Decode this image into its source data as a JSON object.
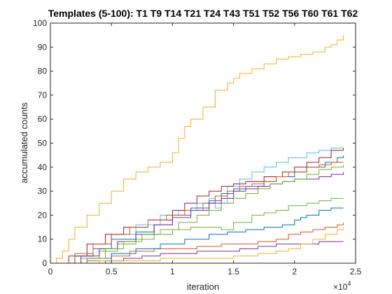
{
  "chart_data": {
    "type": "line",
    "title": "Templates (5-100): T1  T9 T14 T21 T24 T43 T51 T52 T56 T60 T61 T62",
    "xlabel": "iteration",
    "ylabel": "accumulated counts",
    "x_exponent_label": "×10",
    "x_exponent_power": "4",
    "xlim": [
      0,
      2.5
    ],
    "ylim": [
      0,
      100
    ],
    "x_scale_factor": 10000,
    "xticks": [
      0,
      0.5,
      1,
      1.5,
      2,
      2.5
    ],
    "xtick_labels": [
      "0",
      "0.5",
      "1",
      "1.5",
      "2",
      "2.5"
    ],
    "yticks": [
      0,
      10,
      20,
      30,
      40,
      50,
      60,
      70,
      80,
      90,
      100
    ],
    "ytick_labels": [
      "0",
      "10",
      "20",
      "30",
      "40",
      "50",
      "60",
      "70",
      "80",
      "90",
      "100"
    ],
    "grid": false,
    "series": [
      {
        "color": "#EDB120",
        "points": [
          [
            0,
            0
          ],
          [
            0.05,
            2
          ],
          [
            0.1,
            5
          ],
          [
            0.15,
            10
          ],
          [
            0.2,
            15
          ],
          [
            0.3,
            20
          ],
          [
            0.4,
            25
          ],
          [
            0.5,
            30
          ],
          [
            0.6,
            35
          ],
          [
            0.7,
            38
          ],
          [
            0.8,
            40
          ],
          [
            0.9,
            42
          ],
          [
            1.0,
            46
          ],
          [
            1.05,
            52
          ],
          [
            1.1,
            57
          ],
          [
            1.15,
            60
          ],
          [
            1.25,
            65
          ],
          [
            1.35,
            72
          ],
          [
            1.45,
            75
          ],
          [
            1.5,
            77
          ],
          [
            1.55,
            79
          ],
          [
            1.65,
            81
          ],
          [
            1.75,
            83
          ],
          [
            1.85,
            85
          ],
          [
            1.95,
            86
          ],
          [
            2.05,
            87
          ],
          [
            2.15,
            88
          ],
          [
            2.25,
            90
          ],
          [
            2.3,
            91
          ],
          [
            2.35,
            93
          ],
          [
            2.4,
            95
          ]
        ]
      },
      {
        "color": "#4DBEEE",
        "points": [
          [
            0,
            0
          ],
          [
            0.2,
            3
          ],
          [
            0.35,
            8
          ],
          [
            0.5,
            12
          ],
          [
            0.7,
            16
          ],
          [
            0.9,
            20
          ],
          [
            1.05,
            22
          ],
          [
            1.2,
            25
          ],
          [
            1.3,
            27
          ],
          [
            1.35,
            23
          ],
          [
            1.4,
            25
          ],
          [
            1.45,
            32
          ],
          [
            1.55,
            35
          ],
          [
            1.65,
            38
          ],
          [
            1.75,
            40
          ],
          [
            1.85,
            42
          ],
          [
            1.95,
            44
          ],
          [
            2.1,
            46
          ],
          [
            2.2,
            47
          ],
          [
            2.3,
            48
          ],
          [
            2.4,
            48
          ]
        ]
      },
      {
        "color": "#A2142F",
        "points": [
          [
            0,
            0
          ],
          [
            0.15,
            3
          ],
          [
            0.3,
            8
          ],
          [
            0.45,
            12
          ],
          [
            0.6,
            15
          ],
          [
            0.8,
            18
          ],
          [
            1.0,
            22
          ],
          [
            1.1,
            25
          ],
          [
            1.2,
            28
          ],
          [
            1.3,
            30
          ],
          [
            1.4,
            32
          ],
          [
            1.5,
            33
          ],
          [
            1.6,
            34
          ],
          [
            1.75,
            36
          ],
          [
            1.9,
            38
          ],
          [
            2.0,
            40
          ],
          [
            2.1,
            42
          ],
          [
            2.2,
            44
          ],
          [
            2.3,
            47
          ],
          [
            2.4,
            48
          ]
        ]
      },
      {
        "color": "#0072BD",
        "points": [
          [
            0,
            0
          ],
          [
            0.2,
            3
          ],
          [
            0.35,
            6
          ],
          [
            0.5,
            10
          ],
          [
            0.7,
            13
          ],
          [
            0.85,
            16
          ],
          [
            1.0,
            20
          ],
          [
            1.15,
            23
          ],
          [
            1.3,
            26
          ],
          [
            1.4,
            29
          ],
          [
            1.5,
            31
          ],
          [
            1.6,
            32
          ],
          [
            1.75,
            34
          ],
          [
            1.85,
            36
          ],
          [
            2.0,
            38
          ],
          [
            2.1,
            40
          ],
          [
            2.25,
            42
          ],
          [
            2.35,
            44
          ],
          [
            2.4,
            45
          ]
        ]
      },
      {
        "color": "#77AC30",
        "points": [
          [
            0,
            0
          ],
          [
            0.25,
            2
          ],
          [
            0.4,
            5
          ],
          [
            0.55,
            8
          ],
          [
            0.7,
            10
          ],
          [
            0.85,
            12
          ],
          [
            1.0,
            14
          ],
          [
            1.15,
            15
          ],
          [
            1.3,
            15
          ],
          [
            1.4,
            14
          ],
          [
            1.5,
            17
          ],
          [
            1.65,
            20
          ],
          [
            1.75,
            21
          ],
          [
            1.85,
            22
          ],
          [
            1.95,
            24
          ],
          [
            2.1,
            25
          ],
          [
            2.2,
            26
          ],
          [
            2.3,
            27
          ],
          [
            2.4,
            27
          ]
        ]
      },
      {
        "color": "#D95319",
        "points": [
          [
            0,
            0
          ],
          [
            0.3,
            1
          ],
          [
            0.5,
            3
          ],
          [
            0.65,
            5
          ],
          [
            0.85,
            6
          ],
          [
            1.0,
            6
          ],
          [
            1.2,
            7
          ],
          [
            1.4,
            8
          ],
          [
            1.55,
            8
          ],
          [
            1.7,
            9
          ],
          [
            1.85,
            10
          ],
          [
            1.95,
            12
          ],
          [
            2.05,
            13
          ],
          [
            2.15,
            14
          ],
          [
            2.25,
            15
          ],
          [
            2.35,
            16
          ],
          [
            2.4,
            17
          ]
        ]
      },
      {
        "color": "#7E2F8E",
        "points": [
          [
            0,
            0
          ],
          [
            0.45,
            1
          ],
          [
            0.6,
            2
          ],
          [
            0.75,
            3
          ],
          [
            0.9,
            4
          ],
          [
            1.05,
            4
          ],
          [
            1.2,
            5
          ],
          [
            1.3,
            5
          ],
          [
            1.4,
            5
          ],
          [
            1.55,
            6
          ],
          [
            1.7,
            7
          ],
          [
            1.85,
            8
          ],
          [
            2.0,
            8
          ],
          [
            2.2,
            9
          ],
          [
            2.4,
            9
          ]
        ]
      },
      {
        "color": "#0072BD",
        "points": [
          [
            0,
            0
          ],
          [
            0.3,
            2
          ],
          [
            0.5,
            4
          ],
          [
            0.7,
            6
          ],
          [
            0.9,
            8
          ],
          [
            1.1,
            10
          ],
          [
            1.3,
            12
          ],
          [
            1.45,
            13
          ],
          [
            1.6,
            14
          ],
          [
            1.75,
            15
          ],
          [
            1.9,
            16
          ],
          [
            2.0,
            18
          ],
          [
            2.05,
            19
          ],
          [
            2.1,
            20
          ],
          [
            2.2,
            22
          ],
          [
            2.3,
            23
          ],
          [
            2.4,
            23
          ]
        ]
      },
      {
        "color": "#EDB120",
        "points": [
          [
            0,
            0
          ],
          [
            0.4,
            1
          ],
          [
            0.7,
            1
          ],
          [
            0.9,
            2
          ],
          [
            1.1,
            2
          ],
          [
            1.3,
            2
          ],
          [
            1.5,
            3
          ],
          [
            1.7,
            4
          ],
          [
            1.85,
            5
          ],
          [
            1.95,
            6
          ],
          [
            2.05,
            8
          ],
          [
            2.15,
            10
          ],
          [
            2.25,
            12
          ],
          [
            2.35,
            14
          ],
          [
            2.4,
            15
          ]
        ]
      },
      {
        "color": "#D95319",
        "points": [
          [
            0,
            0
          ],
          [
            0.2,
            4
          ],
          [
            0.35,
            8
          ],
          [
            0.5,
            12
          ],
          [
            0.65,
            15
          ],
          [
            0.8,
            18
          ],
          [
            0.95,
            20
          ],
          [
            1.1,
            22
          ],
          [
            1.25,
            25
          ],
          [
            1.35,
            28
          ],
          [
            1.45,
            30
          ],
          [
            1.55,
            32
          ],
          [
            1.65,
            33
          ],
          [
            1.75,
            34
          ],
          [
            1.85,
            36
          ],
          [
            1.95,
            38
          ],
          [
            2.1,
            40
          ],
          [
            2.2,
            41
          ],
          [
            2.3,
            42
          ],
          [
            2.4,
            42
          ]
        ]
      },
      {
        "color": "#7E2F8E",
        "points": [
          [
            0,
            0
          ],
          [
            0.25,
            3
          ],
          [
            0.4,
            6
          ],
          [
            0.55,
            9
          ],
          [
            0.7,
            12
          ],
          [
            0.85,
            16
          ],
          [
            1.0,
            19
          ],
          [
            1.15,
            22
          ],
          [
            1.3,
            25
          ],
          [
            1.4,
            27
          ],
          [
            1.5,
            30
          ],
          [
            1.6,
            31
          ],
          [
            1.7,
            32
          ],
          [
            1.8,
            33
          ],
          [
            1.9,
            34
          ],
          [
            2.0,
            35
          ],
          [
            2.1,
            35
          ],
          [
            2.2,
            36
          ],
          [
            2.3,
            37
          ],
          [
            2.4,
            38
          ]
        ]
      },
      {
        "color": "#77AC30",
        "points": [
          [
            0,
            0
          ],
          [
            0.3,
            2
          ],
          [
            0.45,
            6
          ],
          [
            0.6,
            9
          ],
          [
            0.75,
            12
          ],
          [
            0.9,
            14
          ],
          [
            1.05,
            17
          ],
          [
            1.2,
            20
          ],
          [
            1.3,
            22
          ],
          [
            1.4,
            25
          ],
          [
            1.5,
            27
          ],
          [
            1.6,
            29
          ],
          [
            1.7,
            31
          ],
          [
            1.8,
            33
          ],
          [
            1.9,
            34
          ],
          [
            2.0,
            35
          ],
          [
            2.1,
            37
          ],
          [
            2.2,
            39
          ],
          [
            2.3,
            40
          ],
          [
            2.4,
            41
          ]
        ]
      }
    ]
  }
}
